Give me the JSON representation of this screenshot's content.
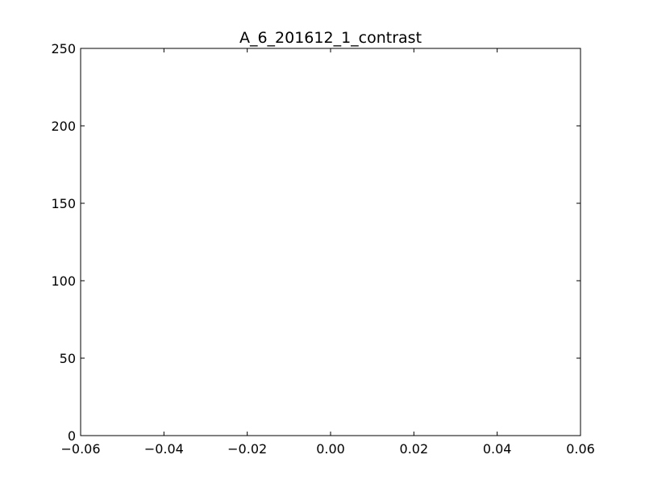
{
  "chart_data": {
    "type": "bar",
    "title": "A_6_201612_1_contrast",
    "xlabel": "",
    "ylabel": "",
    "xlim": [
      -0.06,
      0.06
    ],
    "ylim": [
      0,
      250
    ],
    "x_ticks": [
      -0.06,
      -0.04,
      -0.02,
      0.0,
      0.02,
      0.04,
      0.06
    ],
    "x_tick_labels": [
      "−0.06",
      "−0.04",
      "−0.02",
      "0.00",
      "0.02",
      "0.04",
      "0.06"
    ],
    "y_ticks": [
      0,
      50,
      100,
      150,
      200,
      250
    ],
    "y_tick_labels": [
      "0",
      "50",
      "100",
      "150",
      "200",
      "250"
    ],
    "series": [],
    "grid": false,
    "legend": "none",
    "colors": {
      "axis": "#000000",
      "background": "#ffffff"
    }
  }
}
